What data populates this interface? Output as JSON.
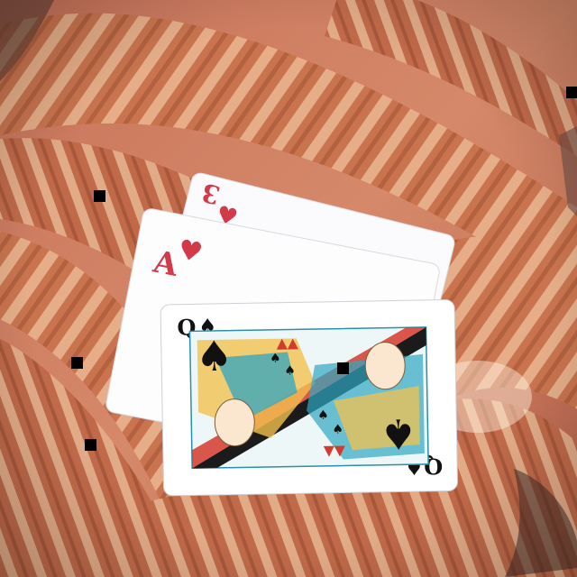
{
  "scene": {
    "subject": "playing-cards-on-coiled-rope",
    "background_color": "#c9744f",
    "rope_highlight_color": "#f0c29a",
    "rope_shadow_color": "#8a3c22"
  },
  "cards": [
    {
      "rank": "3",
      "suit": "hearts",
      "suit_symbol": "♥",
      "color": "#d23a4a"
    },
    {
      "rank": "A",
      "suit": "hearts",
      "suit_symbol": "♥",
      "color": "#d23a4a"
    },
    {
      "rank": "Q",
      "suit": "spades",
      "suit_symbol": "♠",
      "color": "#111111"
    }
  ],
  "markers": {
    "count": 6,
    "color": "#000000"
  }
}
